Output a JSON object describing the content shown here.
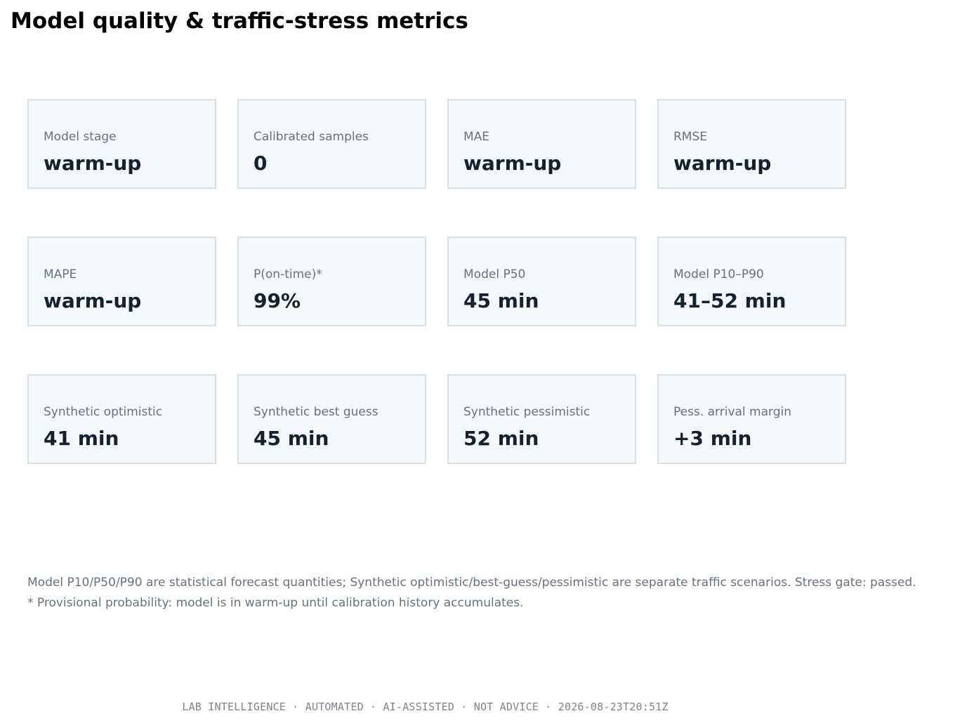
{
  "page": {
    "title": "Model quality & traffic-stress metrics"
  },
  "metrics": [
    {
      "label": "Model stage",
      "value": "warm-up"
    },
    {
      "label": "Calibrated samples",
      "value": "0"
    },
    {
      "label": "MAE",
      "value": "warm-up"
    },
    {
      "label": "RMSE",
      "value": "warm-up"
    },
    {
      "label": "MAPE",
      "value": "warm-up"
    },
    {
      "label": "P(on-time)*",
      "value": "99%"
    },
    {
      "label": "Model P50",
      "value": "45 min"
    },
    {
      "label": "Model P10–P90",
      "value": "41–52 min"
    },
    {
      "label": "Synthetic optimistic",
      "value": "41 min"
    },
    {
      "label": "Synthetic best guess",
      "value": "45 min"
    },
    {
      "label": "Synthetic pessimistic",
      "value": "52 min"
    },
    {
      "label": "Pess. arrival margin",
      "value": "+3 min"
    }
  ],
  "notes": {
    "line1": "Model P10/P50/P90 are statistical forecast quantities; Synthetic optimistic/best-guess/pessimistic are separate traffic scenarios. Stress gate: passed.",
    "line2": "* Provisional probability: model is in warm-up until calibration history accumulates."
  },
  "footer": {
    "text": "LAB INTELLIGENCE · AUTOMATED · AI-ASSISTED · NOT ADVICE · 2026-08-23T20:51Z"
  },
  "colors": {
    "card_background": "#f4f8fb",
    "card_border": "#d7dfe7",
    "label_text": "#66727f",
    "value_text": "#15212e"
  }
}
